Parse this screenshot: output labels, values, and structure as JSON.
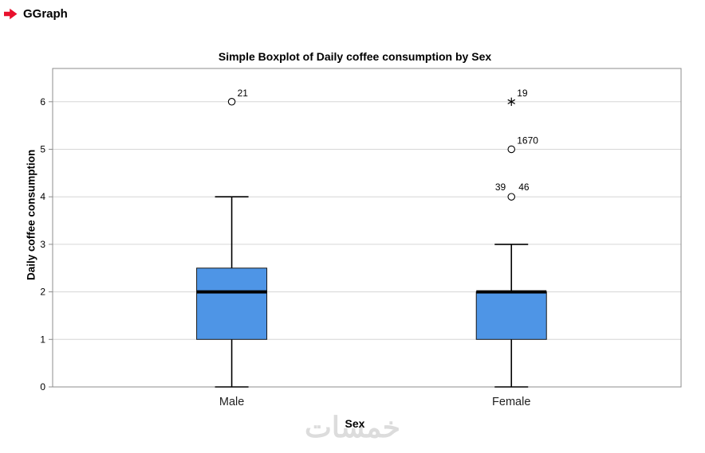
{
  "header": {
    "title": "GGraph"
  },
  "watermark": {
    "text": "خمسات"
  },
  "colors": {
    "box_fill": "#4e95e6",
    "box_stroke": "#1a1a1a",
    "whisker": "#000000",
    "median": "#000000",
    "accent_red": "#e8112d",
    "grid": "#d6d6d6",
    "frame": "#8c8c8c",
    "tick_text": "#000000",
    "category_text": "#1f1f1f"
  },
  "chart_data": {
    "type": "boxplot",
    "title": "Simple Boxplot of Daily coffee consumption by Sex",
    "xlabel": "Sex",
    "ylabel": "Daily coffee consumption",
    "ylim": [
      0,
      6.7
    ],
    "yticks": [
      0,
      1,
      2,
      3,
      4,
      5,
      6
    ],
    "grid": "horizontal",
    "legend": "none",
    "categories": [
      "Male",
      "Female"
    ],
    "series": [
      {
        "name": "Male",
        "whisker_low": 0,
        "q1": 1,
        "median": 2,
        "q3": 2.5,
        "whisker_high": 4,
        "outliers": [
          {
            "value": 6,
            "marker": "circle",
            "labels": [
              "21"
            ]
          }
        ]
      },
      {
        "name": "Female",
        "whisker_low": 0,
        "q1": 1,
        "median": 2,
        "q3": 2,
        "whisker_high": 3,
        "outliers": [
          {
            "value": 4,
            "marker": "circle",
            "labels": [
              "39",
              "46"
            ]
          },
          {
            "value": 5,
            "marker": "circle",
            "labels": [
              "1670"
            ]
          },
          {
            "value": 6,
            "marker": "star",
            "labels": [
              "19"
            ]
          }
        ]
      }
    ]
  }
}
